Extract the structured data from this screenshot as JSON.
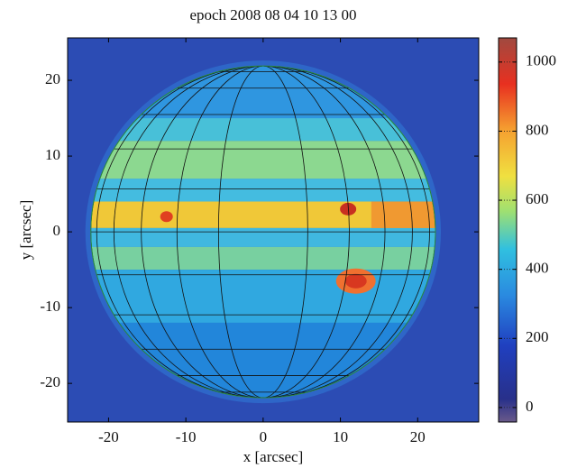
{
  "chart_data": {
    "type": "image",
    "title": "epoch 2008 08 04 10 13 00",
    "xlabel": "x [arcsec]",
    "ylabel": "y [arcsec]",
    "xlim": [
      -25.3,
      27.9
    ],
    "ylim": [
      -25.1,
      25.6
    ],
    "xticks": [
      -20,
      -10,
      0,
      10,
      20
    ],
    "yticks": [
      -20,
      -10,
      0,
      10,
      20
    ],
    "colorbar": {
      "lim": [
        -42,
        1070
      ],
      "ticks": [
        0,
        200,
        400,
        600,
        800,
        1000
      ]
    }
  }
}
